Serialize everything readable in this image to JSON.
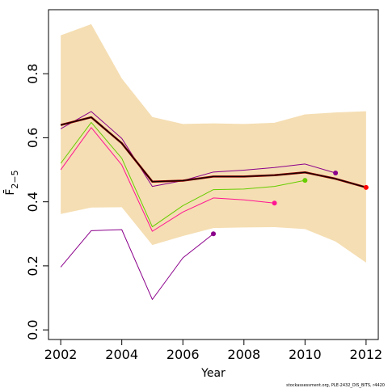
{
  "chart_data": {
    "type": "line",
    "xlabel": "Year",
    "ylabel": "F̄",
    "ylabel_sub": "2−5",
    "xlim": [
      2001.6,
      2012.4
    ],
    "ylim": [
      -0.03,
      1.0
    ],
    "x_ticks": [
      2002,
      2004,
      2006,
      2008,
      2010,
      2012
    ],
    "x_tick_labels": [
      "2002",
      "2004",
      "2006",
      "2008",
      "2010",
      "2012"
    ],
    "y_ticks": [
      0.0,
      0.2,
      0.4,
      0.6,
      0.8
    ],
    "y_tick_labels": [
      "0.0",
      "0.2",
      "0.4",
      "0.6",
      "0.8"
    ],
    "grid": false,
    "band": {
      "color": "#f5deb3",
      "x": [
        2002,
        2003,
        2004,
        2005,
        2006,
        2007,
        2008,
        2009,
        2010,
        2011,
        2012
      ],
      "upper": [
        0.92,
        0.955,
        0.785,
        0.665,
        0.643,
        0.645,
        0.643,
        0.647,
        0.673,
        0.679,
        0.683
      ],
      "lower": [
        0.362,
        0.382,
        0.383,
        0.265,
        0.293,
        0.318,
        0.32,
        0.321,
        0.315,
        0.276,
        0.21
      ]
    },
    "series": [
      {
        "color": "#8b008b",
        "width": 1,
        "end_marker": true,
        "x": [
          2002,
          2003,
          2004,
          2005,
          2006,
          2007
        ],
        "y": [
          0.196,
          0.31,
          0.313,
          0.095,
          0.225,
          0.3
        ]
      },
      {
        "color": "#ff1493",
        "width": 1,
        "end_marker": true,
        "x": [
          2002,
          2003,
          2004,
          2005,
          2006,
          2007,
          2008,
          2009
        ],
        "y": [
          0.5,
          0.632,
          0.515,
          0.308,
          0.368,
          0.412,
          0.406,
          0.396
        ]
      },
      {
        "color": "#66cd00",
        "width": 1,
        "end_marker": true,
        "x": [
          2002,
          2003,
          2004,
          2005,
          2006,
          2007,
          2008,
          2009,
          2010
        ],
        "y": [
          0.52,
          0.648,
          0.536,
          0.322,
          0.388,
          0.438,
          0.44,
          0.448,
          0.467
        ]
      },
      {
        "color": "#8b008b",
        "width": 1,
        "end_marker": true,
        "x": [
          2002,
          2003,
          2004,
          2005,
          2006,
          2007,
          2008,
          2009,
          2010,
          2011
        ],
        "y": [
          0.628,
          0.682,
          0.598,
          0.448,
          0.466,
          0.493,
          0.499,
          0.507,
          0.518,
          0.49
        ]
      },
      {
        "color": "#8b0000",
        "width": 2.5,
        "end_marker": false,
        "x": [
          2002,
          2003,
          2004,
          2005,
          2006,
          2007,
          2008,
          2009,
          2010,
          2011,
          2012
        ],
        "y": [
          0.64,
          0.664,
          0.583,
          0.463,
          0.466,
          0.479,
          0.479,
          0.483,
          0.492,
          0.472,
          0.445
        ]
      },
      {
        "color": "#000000",
        "width": 1,
        "end_marker": false,
        "x": [
          2002,
          2003,
          2004,
          2005,
          2006,
          2007,
          2008,
          2009,
          2010,
          2011,
          2012
        ],
        "y": [
          0.64,
          0.664,
          0.583,
          0.463,
          0.466,
          0.479,
          0.479,
          0.483,
          0.492,
          0.472,
          0.445
        ]
      },
      {
        "color": "#ff0000",
        "width": 0,
        "end_marker": true,
        "x": [
          2012
        ],
        "y": [
          0.445
        ]
      }
    ]
  },
  "footnote": "stockassessment.org, PLE-2432_DIS_BITS, r4420"
}
